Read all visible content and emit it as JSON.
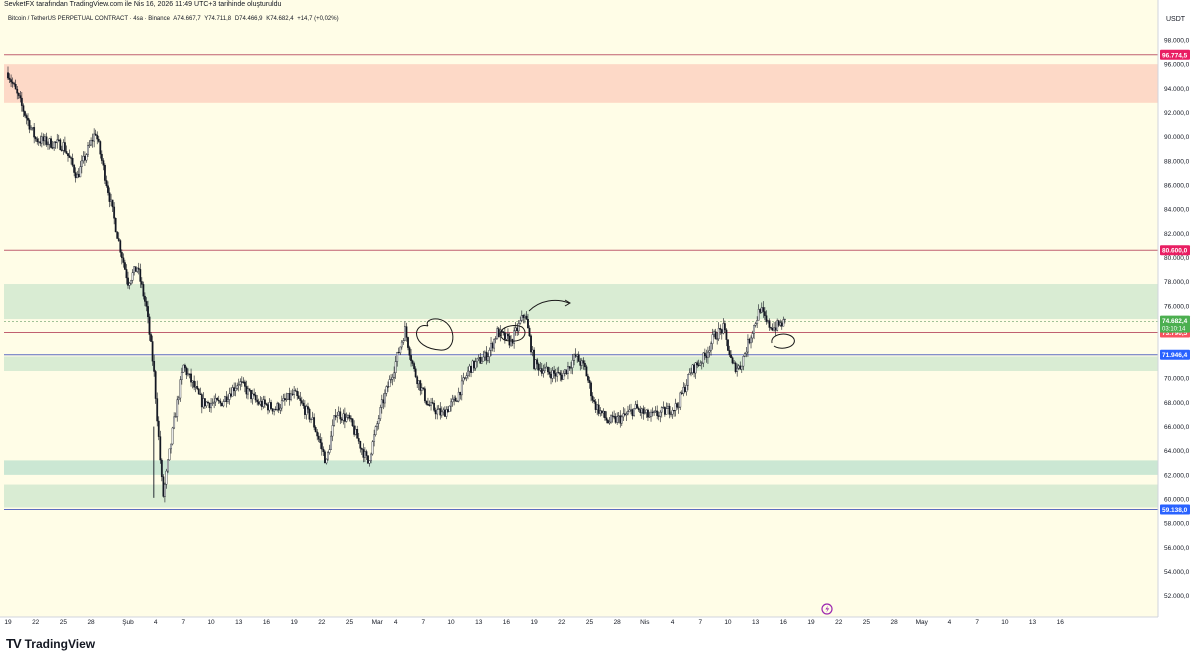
{
  "header": {
    "publisher_line": "SevketFX tarafından TradingView.com ile Nis 16, 2026 11:49 UTC+3 tarihinde oluşturuldu",
    "symbol": "Bitcoin / TetherUS PERPETUAL CONTRACT · 4sa · Binance",
    "open": "A74.667,7",
    "high": "Y74.711,8",
    "low": "D74.466,9",
    "close": "K74.682,4",
    "change": "+14,7 (+0,02%)"
  },
  "brand": {
    "name": "TradingView",
    "logo": "TV"
  },
  "colors": {
    "background": "#fffde7",
    "red_zone": "#fdd9c7",
    "green_zone": "#d9ecd3",
    "green_zone_alt": "#cbe7d3",
    "resistance_line": "#c06070",
    "blue_line": "#5c6bc0",
    "candle": "#131722",
    "price_tag_red": "#f7525f",
    "price_tag_blue": "#2962ff",
    "price_tag_green": "#4caf50",
    "price_tag_pink": "#e91e63"
  },
  "price_axis": {
    "currency": "USDT"
  },
  "chart_data": {
    "type": "candlestick",
    "title": "Bitcoin / TetherUS PERPETUAL CONTRACT · 4sa · Binance",
    "ylim": [
      50000,
      100000
    ],
    "yticks": [
      52000,
      54000,
      56000,
      58000,
      60000,
      62000,
      64000,
      66000,
      68000,
      70000,
      72000,
      74000,
      76000,
      78000,
      80000,
      82000,
      84000,
      86000,
      88000,
      90000,
      92000,
      94000,
      96000,
      98000
    ],
    "ytick_labels": [
      "52.000,0",
      "54.000,0",
      "56.000,0",
      "58.000,0",
      "60.000,0",
      "62.000,0",
      "64.000,0",
      "66.000,0",
      "68.000,0",
      "70.000,0",
      "72.000,0",
      "74.000,0",
      "76.000,0",
      "78.000,0",
      "80.000,0",
      "82.000,0",
      "84.000,0",
      "86.000,0",
      "88.000,0",
      "90.000,0",
      "92.000,0",
      "94.000,0",
      "96.000,0",
      "98.000,0"
    ],
    "x_days": [
      0,
      3,
      6,
      9,
      13,
      16,
      19,
      22,
      25,
      28,
      31,
      34,
      37,
      40,
      42,
      45,
      48,
      51,
      54,
      57,
      60,
      63,
      66,
      69,
      72,
      75,
      78,
      81,
      84,
      87,
      90,
      93,
      96,
      99,
      102,
      105,
      108,
      111,
      114
    ],
    "x_labels": [
      "19",
      "22",
      "25",
      "28",
      "Şub",
      "4",
      "7",
      "10",
      "13",
      "16",
      "19",
      "22",
      "25",
      "Mar",
      "4",
      "7",
      "10",
      "13",
      "16",
      "19",
      "22",
      "25",
      "28",
      "Nis",
      "4",
      "7",
      "10",
      "13",
      "16",
      "19",
      "22",
      "25",
      "28",
      "May",
      "4",
      "7",
      "10",
      "13",
      "16"
    ],
    "horizontal_lines": [
      {
        "price": 96774.5,
        "label": "96.774,5",
        "style": "resistance"
      },
      {
        "price": 80600.0,
        "label": "80.600,0",
        "style": "resistance"
      },
      {
        "price": 73790.5,
        "label": "73.790,5",
        "style": "resistance"
      },
      {
        "price": 71946.4,
        "label": "71.946,4",
        "style": "blue"
      },
      {
        "price": 59138.0,
        "label": "59.138,0",
        "style": "blue"
      }
    ],
    "zones": [
      {
        "from": 92800,
        "to": 96000,
        "color": "red"
      },
      {
        "from": 74900,
        "to": 77800,
        "color": "green"
      },
      {
        "from": 70600,
        "to": 71800,
        "color": "green"
      },
      {
        "from": 62000,
        "to": 63200,
        "color": "green_alt"
      },
      {
        "from": 59300,
        "to": 61200,
        "color": "green"
      }
    ],
    "current_price": {
      "price": 74682.4,
      "label": "74.682,4",
      "countdown": "03:10:14"
    },
    "path_days": [
      0,
      1.5,
      3,
      4.5,
      6,
      7.5,
      8.5,
      9.5,
      11,
      12,
      13,
      14,
      15,
      15.8,
      16.8,
      18,
      19,
      21,
      23,
      25,
      27,
      29,
      31,
      33,
      34.5,
      35.5,
      37,
      39,
      40.5,
      41.8,
      43,
      44,
      45.5,
      47,
      48.5,
      50,
      52,
      53,
      54.5,
      56,
      57,
      58.5,
      60,
      61.5,
      62.5,
      63.5,
      65,
      66.5,
      68,
      69.5,
      71,
      72.5,
      74,
      75.5,
      76.5,
      77.5,
      78.5,
      79.3,
      80.5,
      81.5,
      82.2,
      83,
      84.3
    ],
    "path_prices": [
      95300,
      92500,
      89800,
      89500,
      89300,
      86700,
      88600,
      90400,
      85000,
      81300,
      78000,
      79200,
      75800,
      70700,
      60100,
      66400,
      71000,
      68000,
      67900,
      69700,
      68000,
      67500,
      68700,
      66500,
      63000,
      67200,
      66500,
      63000,
      67800,
      70800,
      74000,
      70600,
      67800,
      67000,
      68200,
      70800,
      72000,
      73800,
      73000,
      75400,
      71200,
      70500,
      70200,
      71800,
      70800,
      67900,
      66400,
      66700,
      67500,
      66800,
      67200,
      67700,
      70600,
      71800,
      73500,
      74100,
      71000,
      70900,
      73600,
      75800,
      74500,
      74200,
      74700
    ]
  }
}
